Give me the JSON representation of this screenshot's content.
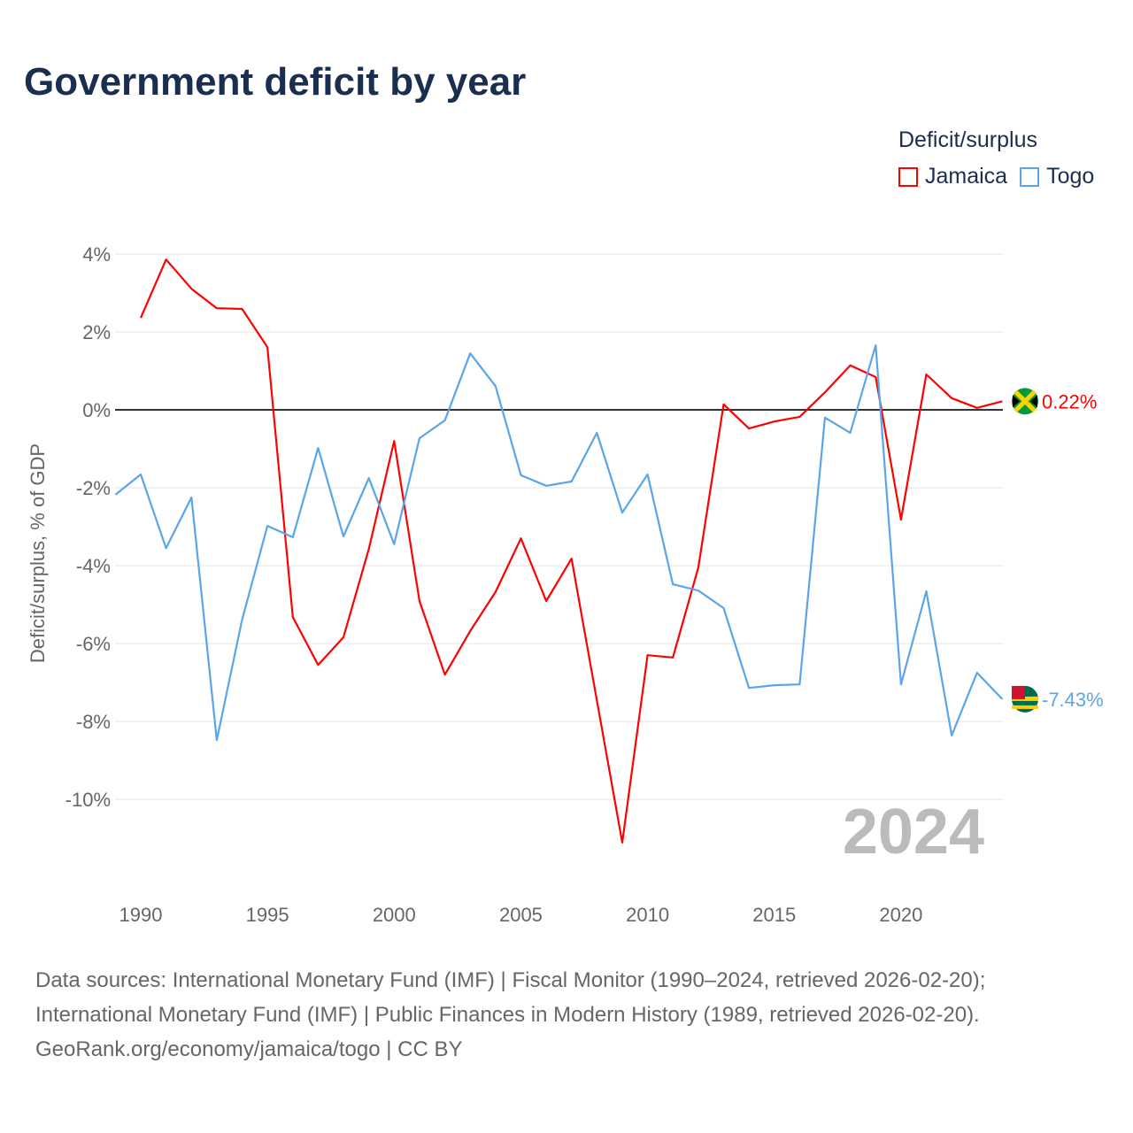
{
  "title": "Government deficit by year",
  "legend": {
    "title": "Deficit/surplus",
    "items": [
      "Jamaica",
      "Togo"
    ]
  },
  "footer": [
    "Data sources: International Monetary Fund (IMF) | Fiscal Monitor (1990–2024, retrieved 2026-02-20);",
    "International Monetary Fund (IMF) | Public Finances in Modern History (1989, retrieved 2026-02-20).",
    "GeoRank.org/economy/jamaica/togo | CC BY"
  ],
  "chart_data": {
    "type": "line",
    "title": "Government deficit by year",
    "ylabel": "Deficit/surplus, % of GDP",
    "xlabel": "",
    "year_watermark": "2024",
    "ylim": [
      -12,
      4.5
    ],
    "xlim": [
      1989,
      2024
    ],
    "yticks": [
      4,
      2,
      0,
      -2,
      -4,
      -6,
      -8,
      -10
    ],
    "ytick_labels": [
      "4%",
      "2%",
      "0%",
      "-2%",
      "-4%",
      "-6%",
      "-8%",
      "-10%"
    ],
    "xticks": [
      1990,
      1995,
      2000,
      2005,
      2010,
      2015,
      2020
    ],
    "xtick_labels": [
      "1990",
      "1995",
      "2000",
      "2005",
      "2010",
      "2015",
      "2020"
    ],
    "series": [
      {
        "name": "Jamaica",
        "color": "#ff0000",
        "end_label": "0.22%",
        "start": 1990,
        "values": [
          2.36,
          3.86,
          3.11,
          2.61,
          2.59,
          1.61,
          -5.32,
          -6.55,
          -5.84,
          -3.57,
          -0.8,
          -4.91,
          -6.8,
          -5.68,
          -4.68,
          -3.3,
          -4.91,
          -3.82,
          -7.46,
          -11.11,
          -6.3,
          -6.36,
          -4.05,
          0.14,
          -0.48,
          -0.3,
          -0.18,
          0.45,
          1.14,
          0.84,
          -2.82,
          0.91,
          0.3,
          0.05,
          0.22
        ]
      },
      {
        "name": "Togo",
        "color": "#5aa5ea",
        "end_label": "-7.43%",
        "start": 1989,
        "values": [
          -2.18,
          -1.66,
          -3.55,
          -2.25,
          -8.48,
          -5.39,
          -2.98,
          -3.27,
          -0.98,
          -3.25,
          -1.75,
          -3.45,
          -0.73,
          -0.27,
          1.45,
          0.61,
          -1.68,
          -1.95,
          -1.84,
          -0.59,
          -2.64,
          -1.66,
          -4.48,
          -4.64,
          -5.09,
          -7.14,
          -7.07,
          -7.05,
          -0.2,
          -0.59,
          1.66,
          -7.05,
          -4.66,
          -8.36,
          -6.75,
          -7.43
        ]
      }
    ]
  }
}
